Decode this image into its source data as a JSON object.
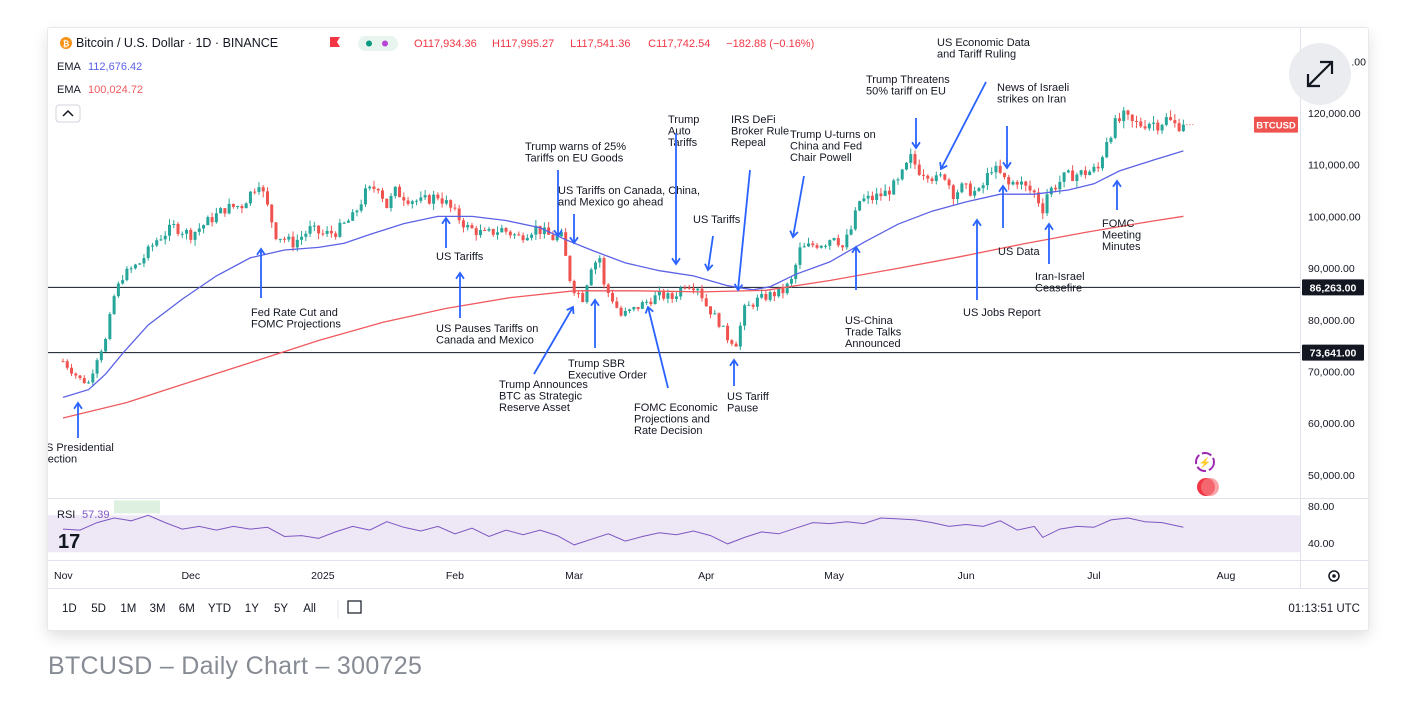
{
  "chart_data": {
    "type": "candlestick",
    "header": {
      "title": "Bitcoin / U.S. Dollar · 1D · BINANCE",
      "ohlc": {
        "o": "O117,934.36",
        "h": "H117,995.27",
        "l": "L117,541.36",
        "c": "C117,742.54",
        "change": "−182.88 (−0.16%)"
      },
      "ema1_label": "EMA",
      "ema1_value": "112,676.42",
      "ema2_label": "EMA",
      "ema2_value": "100,024.72"
    },
    "colors": {
      "up": "#26a69a",
      "down": "#ef5350",
      "ema_fast": "#5b62e6",
      "ema_slow": "#f05a5f",
      "annotation": "#2962ff",
      "rsi": "#7e57c2",
      "rsi_band": "#ede7f6"
    },
    "y_axis": {
      "ylim": [
        38000,
        132000
      ],
      "ticks": [
        "120,000.00",
        "110,000.00",
        "100,000.00",
        "90,000.00",
        "80,000.00",
        "70,000.00",
        "60,000.00",
        "50,000.00"
      ],
      "tick_values": [
        120000,
        110000,
        100000,
        90000,
        80000,
        70000,
        60000,
        50000
      ],
      "top_partial": ".00"
    },
    "price_tag": {
      "label": "BTCUSD",
      "value": 117742
    },
    "hlines": [
      {
        "label": "86,263.00",
        "value": 86263
      },
      {
        "label": "73,641.00",
        "value": 73641
      }
    ],
    "x_axis": {
      "labels": [
        "Nov",
        "Dec",
        "2025",
        "Feb",
        "Mar",
        "Apr",
        "May",
        "Jun",
        "Jul",
        "Aug"
      ],
      "label_days": [
        0,
        30,
        61,
        92,
        120,
        151,
        181,
        212,
        242,
        273
      ]
    },
    "series": [
      {
        "name": "close_daily",
        "points": [
          [
            0,
            72000
          ],
          [
            4,
            68500
          ],
          [
            6,
            67800
          ],
          [
            8,
            72800
          ],
          [
            10,
            76000
          ],
          [
            12,
            84500
          ],
          [
            14,
            88500
          ],
          [
            18,
            91000
          ],
          [
            22,
            95500
          ],
          [
            26,
            98000
          ],
          [
            30,
            96500
          ],
          [
            34,
            99000
          ],
          [
            38,
            101500
          ],
          [
            42,
            102200
          ],
          [
            46,
            106800
          ],
          [
            48,
            101800
          ],
          [
            50,
            96500
          ],
          [
            54,
            94800
          ],
          [
            58,
            97500
          ],
          [
            61,
            96500
          ],
          [
            64,
            97000
          ],
          [
            68,
            99800
          ],
          [
            71,
            104500
          ],
          [
            74,
            106000
          ],
          [
            76,
            102000
          ],
          [
            78,
            104800
          ],
          [
            81,
            103500
          ],
          [
            84,
            102800
          ],
          [
            88,
            104000
          ],
          [
            90,
            102500
          ],
          [
            92,
            100500
          ],
          [
            95,
            97800
          ],
          [
            99,
            96500
          ],
          [
            103,
            97500
          ],
          [
            107,
            96000
          ],
          [
            111,
            97800
          ],
          [
            115,
            95800
          ],
          [
            117,
            96000
          ],
          [
            119,
            88000
          ],
          [
            120,
            86000
          ],
          [
            122,
            84200
          ],
          [
            124,
            90500
          ],
          [
            126,
            92000
          ],
          [
            127,
            86500
          ],
          [
            129,
            84000
          ],
          [
            131,
            80800
          ],
          [
            134,
            82000
          ],
          [
            137,
            83500
          ],
          [
            140,
            84800
          ],
          [
            143,
            84200
          ],
          [
            146,
            87000
          ],
          [
            149,
            86500
          ],
          [
            151,
            82800
          ],
          [
            154,
            79500
          ],
          [
            156,
            76500
          ],
          [
            158,
            75500
          ],
          [
            160,
            82000
          ],
          [
            163,
            83800
          ],
          [
            166,
            84800
          ],
          [
            169,
            85500
          ],
          [
            171,
            87500
          ],
          [
            173,
            93500
          ],
          [
            176,
            94500
          ],
          [
            179,
            95000
          ],
          [
            181,
            96500
          ],
          [
            183,
            94000
          ],
          [
            185,
            97500
          ],
          [
            187,
            103000
          ],
          [
            190,
            103500
          ],
          [
            193,
            104500
          ],
          [
            196,
            106500
          ],
          [
            199,
            111200
          ],
          [
            201,
            109000
          ],
          [
            203,
            108500
          ],
          [
            205,
            107000
          ],
          [
            207,
            108000
          ],
          [
            209,
            104500
          ],
          [
            211,
            105500
          ],
          [
            213,
            105000
          ],
          [
            215,
            104500
          ],
          [
            216,
            106000
          ],
          [
            218,
            109500
          ],
          [
            220,
            108000
          ],
          [
            222,
            106000
          ],
          [
            224,
            107000
          ],
          [
            226,
            105500
          ],
          [
            228,
            104500
          ],
          [
            230,
            101500
          ],
          [
            231,
            104500
          ],
          [
            233,
            106000
          ],
          [
            235,
            107500
          ],
          [
            237,
            108000
          ],
          [
            239,
            108300
          ],
          [
            241,
            108700
          ],
          [
            243,
            109200
          ],
          [
            245,
            115000
          ],
          [
            247,
            117800
          ],
          [
            249,
            119200
          ],
          [
            251,
            118000
          ],
          [
            253,
            117800
          ],
          [
            255,
            118300
          ],
          [
            257,
            117900
          ],
          [
            259,
            118800
          ],
          [
            261,
            117700
          ],
          [
            263,
            117742
          ]
        ]
      },
      {
        "name": "EMA 112,676.42",
        "points": [
          [
            0,
            65000
          ],
          [
            6,
            66500
          ],
          [
            10,
            69500
          ],
          [
            14,
            73500
          ],
          [
            20,
            79000
          ],
          [
            28,
            84000
          ],
          [
            36,
            88500
          ],
          [
            44,
            92000
          ],
          [
            52,
            93500
          ],
          [
            60,
            94000
          ],
          [
            66,
            94800
          ],
          [
            72,
            96500
          ],
          [
            80,
            98600
          ],
          [
            88,
            100000
          ],
          [
            96,
            100000
          ],
          [
            104,
            99200
          ],
          [
            112,
            97800
          ],
          [
            118,
            95500
          ],
          [
            124,
            93500
          ],
          [
            132,
            91000
          ],
          [
            140,
            89500
          ],
          [
            148,
            88500
          ],
          [
            156,
            86600
          ],
          [
            162,
            85800
          ],
          [
            166,
            86400
          ],
          [
            172,
            88800
          ],
          [
            180,
            91200
          ],
          [
            188,
            95000
          ],
          [
            196,
            98500
          ],
          [
            204,
            101000
          ],
          [
            212,
            102800
          ],
          [
            220,
            104300
          ],
          [
            228,
            104300
          ],
          [
            236,
            105100
          ],
          [
            242,
            106300
          ],
          [
            248,
            108800
          ],
          [
            256,
            110900
          ],
          [
            263,
            112676
          ]
        ]
      },
      {
        "name": "EMA 100,024.72",
        "points": [
          [
            0,
            61000
          ],
          [
            15,
            64000
          ],
          [
            30,
            68000
          ],
          [
            45,
            72000
          ],
          [
            60,
            76000
          ],
          [
            75,
            79500
          ],
          [
            90,
            82200
          ],
          [
            105,
            84300
          ],
          [
            120,
            85600
          ],
          [
            135,
            85600
          ],
          [
            150,
            85400
          ],
          [
            165,
            85700
          ],
          [
            180,
            87600
          ],
          [
            195,
            89800
          ],
          [
            210,
            92100
          ],
          [
            225,
            94600
          ],
          [
            240,
            96900
          ],
          [
            255,
            99000
          ],
          [
            263,
            100025
          ]
        ]
      }
    ],
    "annotations": [
      {
        "text": "US Presidential\nElection",
        "day": 7,
        "arrow": "up"
      },
      {
        "text": "Fed Rate Cut and\nFOMC Projections",
        "day": 48,
        "arrow": "up"
      },
      {
        "text": "US Tariffs",
        "day": 91,
        "arrow": "up"
      },
      {
        "text": "US Pauses Tariffs on\nCanada and Mexico",
        "day": 92,
        "arrow": "up"
      },
      {
        "text": "Trump warns of 25%\nTariffs on EU Goods",
        "day": 117,
        "arrow": "down"
      },
      {
        "text": "US Tariffs on Canada, China,\nand Mexico go ahead",
        "day": 122,
        "arrow": "down"
      },
      {
        "text": "Trump Announces\nBTC as Strategic\nReserve Asset",
        "day": 126,
        "arrow": "up"
      },
      {
        "text": "Trump SBR\nExecutive Order",
        "day": 129,
        "arrow": "up"
      },
      {
        "text": "FOMC Economic\nProjections and\nRate Decision",
        "day": 140,
        "arrow": "up"
      },
      {
        "text": "Trump\nAuto\nTariffs",
        "day": 148,
        "arrow": "down"
      },
      {
        "text": "US Tariffs",
        "day": 155,
        "arrow": "down"
      },
      {
        "text": "IRS DeFi\nBroker Rule\nRepeal",
        "day": 162,
        "arrow": "down"
      },
      {
        "text": "US Tariff\nPause",
        "day": 160,
        "arrow": "up"
      },
      {
        "text": "Trump U-turns on\nChina and Fed\nChair Powell",
        "day": 171,
        "arrow": "down"
      },
      {
        "text": "US-China\nTrade Talks\nAnnounced",
        "day": 190,
        "arrow": "up"
      },
      {
        "text": "Trump Threatens\n50% tariff on EU",
        "day": 200,
        "arrow": "down"
      },
      {
        "text": "US Economic Data\nand Tariff Ruling",
        "day": 206,
        "arrow": "down"
      },
      {
        "text": "US Jobs Report",
        "day": 213,
        "arrow": "up"
      },
      {
        "text": "US Data",
        "day": 223,
        "arrow": "up"
      },
      {
        "text": "News of Israeli\nstrikes on Iran",
        "day": 224,
        "arrow": "down"
      },
      {
        "text": "Iran-Israel\nCeasefire",
        "day": 233,
        "arrow": "up"
      },
      {
        "text": "FOMC\nMeeting\nMinutes",
        "day": 247,
        "arrow": "up"
      }
    ],
    "rsi": {
      "label": "RSI",
      "value": "57.39",
      "ticks": [
        "80.00",
        "40.00"
      ],
      "tick_values": [
        80,
        40
      ],
      "points": [
        [
          0,
          55
        ],
        [
          4,
          54
        ],
        [
          8,
          62
        ],
        [
          12,
          67
        ],
        [
          16,
          64
        ],
        [
          20,
          70
        ],
        [
          24,
          62
        ],
        [
          28,
          55
        ],
        [
          32,
          58
        ],
        [
          36,
          54
        ],
        [
          40,
          58
        ],
        [
          44,
          55
        ],
        [
          48,
          57
        ],
        [
          52,
          47
        ],
        [
          56,
          48
        ],
        [
          60,
          45
        ],
        [
          64,
          52
        ],
        [
          68,
          58
        ],
        [
          72,
          54
        ],
        [
          76,
          63
        ],
        [
          80,
          57
        ],
        [
          84,
          53
        ],
        [
          88,
          58
        ],
        [
          92,
          50
        ],
        [
          96,
          56
        ],
        [
          100,
          47
        ],
        [
          104,
          54
        ],
        [
          108,
          49
        ],
        [
          112,
          54
        ],
        [
          116,
          48
        ],
        [
          120,
          38
        ],
        [
          124,
          44
        ],
        [
          128,
          50
        ],
        [
          132,
          42
        ],
        [
          136,
          47
        ],
        [
          140,
          51
        ],
        [
          144,
          49
        ],
        [
          148,
          53
        ],
        [
          152,
          48
        ],
        [
          156,
          39
        ],
        [
          160,
          46
        ],
        [
          164,
          52
        ],
        [
          168,
          50
        ],
        [
          172,
          56
        ],
        [
          176,
          62
        ],
        [
          180,
          61
        ],
        [
          184,
          63
        ],
        [
          188,
          61
        ],
        [
          192,
          67
        ],
        [
          196,
          66
        ],
        [
          200,
          65
        ],
        [
          204,
          62
        ],
        [
          208,
          58
        ],
        [
          212,
          60
        ],
        [
          216,
          58
        ],
        [
          220,
          64
        ],
        [
          224,
          54
        ],
        [
          228,
          58
        ],
        [
          230,
          46
        ],
        [
          234,
          55
        ],
        [
          238,
          58
        ],
        [
          242,
          57
        ],
        [
          246,
          65
        ],
        [
          250,
          67
        ],
        [
          254,
          63
        ],
        [
          258,
          62
        ],
        [
          263,
          57
        ]
      ]
    },
    "toolbar": {
      "ranges": [
        "1D",
        "5D",
        "1M",
        "3M",
        "6M",
        "YTD",
        "1Y",
        "5Y",
        "All"
      ],
      "time": "01:13:51 UTC"
    },
    "logo": "17"
  },
  "caption": "BTCUSD – Daily Chart – 300725"
}
